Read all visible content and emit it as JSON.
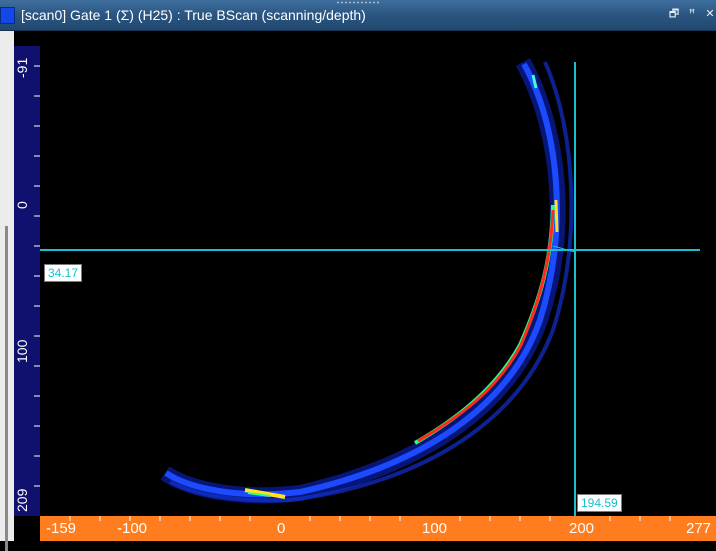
{
  "window": {
    "title": "[scan0] Gate 1 (Σ) (H25) : True BScan (scanning/depth)",
    "controls": {
      "restore": "🗗",
      "pin": "ꟸ",
      "close": "✕"
    }
  },
  "colors": {
    "title_bar": "#2c5783",
    "background": "#000000",
    "y_ruler": "#10106e",
    "x_ruler": "#ff7c1f",
    "cursor": "#19c0cf"
  },
  "axes": {
    "y_ticks": [
      "-91",
      "0",
      "100",
      "209"
    ],
    "x_ticks": [
      "-159",
      "-100",
      "0",
      "100",
      "200",
      "277"
    ],
    "y_range": [
      -91,
      209
    ],
    "x_range": [
      -159,
      277
    ]
  },
  "cursors": {
    "horizontal_value": "34.17",
    "vertical_value": "194.59"
  },
  "icons": [
    "app-icon",
    "restore-icon",
    "pin-icon",
    "close-icon"
  ]
}
